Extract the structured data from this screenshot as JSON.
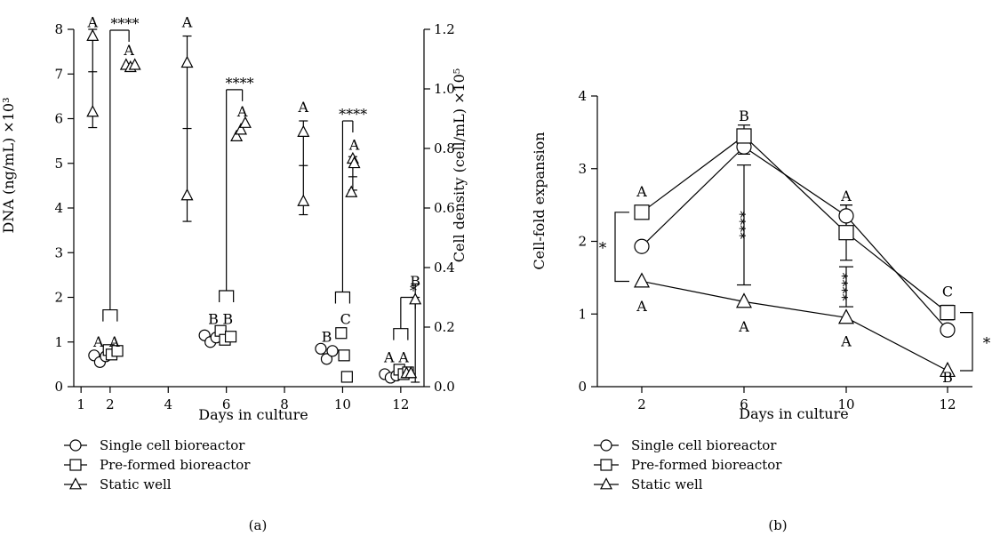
{
  "chart_data": [
    {
      "type": "scatter",
      "panel_label": "(a)",
      "xlabel": "Days in culture",
      "ylabel": "DNA (ng/mL) ×10³",
      "y2label": "Cell density (cell/mL) ×10⁵",
      "ylim": [
        0,
        8
      ],
      "yticks": [
        "0",
        "1",
        "2",
        "3",
        "4",
        "5",
        "6",
        "7",
        "8"
      ],
      "y2lim": [
        0,
        1.2
      ],
      "y2ticks": [
        "0.0",
        "0.2",
        "0.4",
        "0.6",
        "0.8",
        "1.0",
        "1.2"
      ],
      "xticks": [
        "1",
        "2",
        "4",
        "6",
        "8",
        "10",
        "12"
      ],
      "series": [
        {
          "name": "Single cell bioreactor",
          "marker": "circle",
          "points": [
            {
              "x": 1.45,
              "y": 0.7
            },
            {
              "x": 1.65,
              "y": 0.55
            },
            {
              "x": 1.85,
              "y": 0.68
            },
            {
              "x": 5.25,
              "y": 1.15
            },
            {
              "x": 5.45,
              "y": 1.0
            },
            {
              "x": 5.65,
              "y": 1.1
            },
            {
              "x": 9.25,
              "y": 0.85
            },
            {
              "x": 9.45,
              "y": 0.62
            },
            {
              "x": 9.65,
              "y": 0.8
            },
            {
              "x": 11.45,
              "y": 0.28
            },
            {
              "x": 11.65,
              "y": 0.2
            },
            {
              "x": 11.85,
              "y": 0.25
            }
          ]
        },
        {
          "name": "Pre-formed bioreactor",
          "marker": "square",
          "points": [
            {
              "x": 1.95,
              "y": 0.82
            },
            {
              "x": 2.05,
              "y": 0.72
            },
            {
              "x": 2.25,
              "y": 0.8
            },
            {
              "x": 5.8,
              "y": 1.25
            },
            {
              "x": 5.95,
              "y": 1.05
            },
            {
              "x": 6.15,
              "y": 1.12
            },
            {
              "x": 9.95,
              "y": 1.2
            },
            {
              "x": 10.05,
              "y": 0.7
            },
            {
              "x": 10.15,
              "y": 0.22
            },
            {
              "x": 11.95,
              "y": 0.38
            },
            {
              "x": 12.1,
              "y": 0.28
            },
            {
              "x": 12.25,
              "y": 0.32
            }
          ]
        },
        {
          "name": "Static well",
          "marker": "triangle",
          "points": [
            {
              "x": 1.4,
              "y": 7.85
            },
            {
              "x": 1.4,
              "y": 6.15
            },
            {
              "x": 2.55,
              "y": 7.2
            },
            {
              "x": 2.7,
              "y": 7.15
            },
            {
              "x": 2.85,
              "y": 7.2
            },
            {
              "x": 4.65,
              "y": 7.25
            },
            {
              "x": 4.65,
              "y": 4.28
            },
            {
              "x": 6.35,
              "y": 5.6
            },
            {
              "x": 6.5,
              "y": 5.75
            },
            {
              "x": 6.65,
              "y": 5.9
            },
            {
              "x": 8.65,
              "y": 5.7
            },
            {
              "x": 8.65,
              "y": 4.15
            },
            {
              "x": 10.3,
              "y": 4.35
            },
            {
              "x": 10.35,
              "y": 5.1
            },
            {
              "x": 10.4,
              "y": 5.0
            },
            {
              "x": 12.2,
              "y": 0.3
            },
            {
              "x": 12.35,
              "y": 0.3
            },
            {
              "x": 12.5,
              "y": 1.95
            }
          ]
        }
      ],
      "error_bars": [
        {
          "x": 1.4,
          "low": 5.8,
          "mean": 7.05,
          "high": 8.0
        },
        {
          "x": 4.65,
          "low": 3.7,
          "mean": 5.78,
          "high": 7.85
        },
        {
          "x": 8.65,
          "low": 3.85,
          "mean": 4.95,
          "high": 5.95
        },
        {
          "x": 10.35,
          "low": 4.4,
          "mean": 4.7,
          "high": 5.15
        },
        {
          "x": 12.5,
          "low": 0.1,
          "mean": 2.0,
          "high": 2.3
        }
      ],
      "letters": [
        {
          "text": "A",
          "x": 1.4,
          "y": 8.15
        },
        {
          "text": "A",
          "x": 2.65,
          "y": 7.52
        },
        {
          "text": "A",
          "x": 4.65,
          "y": 8.15
        },
        {
          "text": "A",
          "x": 6.55,
          "y": 6.15
        },
        {
          "text": "A",
          "x": 8.65,
          "y": 6.25
        },
        {
          "text": "A",
          "x": 10.4,
          "y": 5.4
        },
        {
          "text": "B",
          "x": 12.5,
          "y": 2.35
        },
        {
          "text": "A",
          "x": 1.6,
          "y": 1.0
        },
        {
          "text": "A",
          "x": 2.15,
          "y": 1.0
        },
        {
          "text": "B",
          "x": 5.55,
          "y": 1.5
        },
        {
          "text": "B",
          "x": 6.05,
          "y": 1.5
        },
        {
          "text": "B",
          "x": 9.45,
          "y": 1.1
        },
        {
          "text": "C",
          "x": 10.1,
          "y": 1.5
        },
        {
          "text": "A",
          "x": 11.6,
          "y": 0.65
        },
        {
          "text": "A",
          "x": 12.1,
          "y": 0.65
        }
      ],
      "significance": [
        {
          "label": "****",
          "x_low": 2.0,
          "x_high": 2.65,
          "y_low": 1.72,
          "y_high": 7.98
        },
        {
          "label": "****",
          "x_low": 6.0,
          "x_high": 6.55,
          "y_low": 2.15,
          "y_high": 6.65
        },
        {
          "label": "****",
          "x_low": 10.0,
          "x_high": 10.35,
          "y_low": 2.12,
          "y_high": 5.95
        },
        {
          "label": "*",
          "x_low": 12.0,
          "x_high": 12.5,
          "y_low": 1.3,
          "y_high": 2.0
        }
      ]
    },
    {
      "type": "line",
      "panel_label": "(b)",
      "xlabel": "Days in culture",
      "ylabel": "Cell-fold expansion",
      "categories": [
        "2",
        "6",
        "10",
        "12"
      ],
      "ylim": [
        0,
        4
      ],
      "yticks": [
        "0",
        "1",
        "2",
        "3",
        "4"
      ],
      "series": [
        {
          "name": "Single cell bioreactor",
          "marker": "circle",
          "values": [
            1.93,
            3.3,
            2.35,
            0.78
          ],
          "errors": [
            0,
            0.1,
            0.15,
            0.05
          ]
        },
        {
          "name": "Pre-formed bioreactor",
          "marker": "square",
          "values": [
            2.4,
            3.45,
            2.12,
            1.02
          ],
          "errors": [
            0.05,
            0.15,
            0.38,
            0.1
          ]
        },
        {
          "name": "Static well",
          "marker": "triangle",
          "values": [
            1.45,
            1.17,
            0.95,
            0.22
          ],
          "errors": [
            0,
            0,
            0,
            0
          ]
        }
      ],
      "letters": [
        {
          "text": "A",
          "day": "2",
          "y": 2.68
        },
        {
          "text": "B",
          "day": "6",
          "y": 3.72
        },
        {
          "text": "A",
          "day": "10",
          "y": 2.62
        },
        {
          "text": "C",
          "day": "12",
          "y": 1.3
        },
        {
          "text": "A",
          "day": "2",
          "y": 1.1
        },
        {
          "text": "A",
          "day": "6",
          "y": 0.82
        },
        {
          "text": "A",
          "day": "10",
          "y": 0.62
        },
        {
          "text": "B",
          "day": "12",
          "y": 0.12
        }
      ],
      "significance": [
        {
          "label": "*",
          "day": "2",
          "y_low": 1.45,
          "y_high": 2.4,
          "side": "left"
        },
        {
          "label": "****",
          "day": "6",
          "y_low": 1.4,
          "y_high": 3.05,
          "side": "left"
        },
        {
          "label": "****",
          "day": "10",
          "y_low": 1.1,
          "y_high": 1.65,
          "side": "left"
        },
        {
          "label": "*",
          "day": "12",
          "y_low": 0.22,
          "y_high": 1.02,
          "side": "right"
        }
      ]
    }
  ]
}
